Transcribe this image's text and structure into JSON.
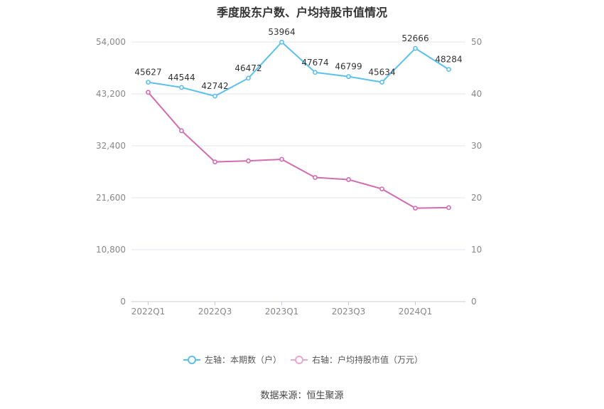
{
  "chart_data": {
    "type": "line",
    "title": "季度股东户数、户均持股市值情况",
    "categories": [
      "2022Q1",
      "2022Q2",
      "2022Q3",
      "2022Q4",
      "2023Q1",
      "2023Q2",
      "2023Q3",
      "2023Q4",
      "2024Q1",
      "2024Q2"
    ],
    "x_tick_labels": [
      "2022Q1",
      "2022Q3",
      "2023Q1",
      "2023Q3",
      "2024Q1"
    ],
    "left_axis": {
      "ticks": [
        "0",
        "10,800",
        "21,600",
        "32,400",
        "43,200",
        "54,000"
      ],
      "ylim": [
        0,
        54000
      ]
    },
    "right_axis": {
      "ticks": [
        "0",
        "10",
        "20",
        "30",
        "40",
        "50"
      ],
      "ylim": [
        0,
        50
      ]
    },
    "series": [
      {
        "name": "左轴：本期数（户）",
        "axis": "left",
        "color": "#5bc0eb",
        "values": [
          45627,
          44544,
          42742,
          46472,
          53964,
          47674,
          46799,
          45634,
          52666,
          48284
        ],
        "labels": [
          "45627",
          "44544",
          "42742",
          "46472",
          "53964",
          "47674",
          "46799",
          "45634",
          "52666",
          "48284"
        ]
      },
      {
        "name": "右轴：户均持股市值（万元）",
        "axis": "right",
        "color": "#d36bb0",
        "values": [
          40.3,
          32.9,
          26.9,
          27.1,
          27.4,
          23.9,
          23.5,
          21.7,
          18.0,
          18.1
        ]
      }
    ],
    "grid": true,
    "legend_position": "bottom"
  },
  "footer": {
    "source": "数据来源：恒生聚源"
  }
}
